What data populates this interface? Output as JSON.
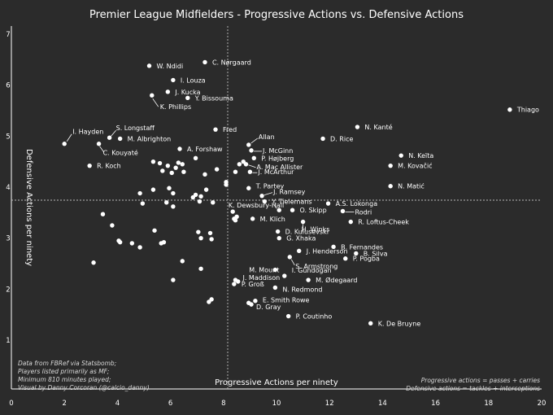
{
  "chart_data": {
    "type": "scatter",
    "title": "Premier League Midfielders - Progressive Actions vs. Defensive Actions",
    "xlabel": "Progressive Actions per ninety",
    "ylabel": "Defensive Actions per ninety",
    "xlim": [
      0,
      20
    ],
    "ylim": [
      0.5,
      7
    ],
    "xticks": [
      "0",
      "2",
      "4",
      "6",
      "8",
      "10",
      "12",
      "14",
      "16",
      "18",
      "20"
    ],
    "yticks": [
      "1",
      "2",
      "3",
      "4",
      "5",
      "6",
      "7"
    ],
    "reference_lines": {
      "x": 8,
      "y": 3.75
    },
    "grid": false,
    "source_note": [
      "Data from FBRef via Statsbomb;",
      "Players listed primarily as MF;",
      "Minimum 810 minutes played;",
      "Visual by Danny Corcoran (@calcio_danny)"
    ],
    "definitions_note": [
      "Progressive actions = passes + carries",
      "Defensive actions = tackles + interceptions"
    ],
    "labeled_points": [
      {
        "name": "C. Nørgaard",
        "x": 7.3,
        "y": 6.45
      },
      {
        "name": "W. Ndidi",
        "x": 5.2,
        "y": 6.38
      },
      {
        "name": "I. Louza",
        "x": 6.1,
        "y": 6.1
      },
      {
        "name": "J. Kucka",
        "x": 5.9,
        "y": 5.87
      },
      {
        "name": "Y. Bissouma",
        "x": 6.65,
        "y": 5.75
      },
      {
        "name": "K. Phillips",
        "x": 5.3,
        "y": 5.8
      },
      {
        "name": "Thiago",
        "x": 18.8,
        "y": 5.52
      },
      {
        "name": "Fred",
        "x": 7.7,
        "y": 5.13
      },
      {
        "name": "N. Kanté",
        "x": 13.05,
        "y": 5.18
      },
      {
        "name": "S. Longstaff",
        "x": 3.7,
        "y": 4.97
      },
      {
        "name": "I. Hayden",
        "x": 2.0,
        "y": 4.85
      },
      {
        "name": "M. Albrighton",
        "x": 4.1,
        "y": 4.95
      },
      {
        "name": "C. Kouyaté",
        "x": 3.3,
        "y": 4.85
      },
      {
        "name": "D. Rice",
        "x": 11.75,
        "y": 4.95
      },
      {
        "name": "Allan",
        "x": 8.95,
        "y": 4.83
      },
      {
        "name": "J. McGinn",
        "x": 9.05,
        "y": 4.72
      },
      {
        "name": "A. Forshaw",
        "x": 6.35,
        "y": 4.75
      },
      {
        "name": "P. Højberg",
        "x": 9.15,
        "y": 4.57
      },
      {
        "name": "N. Keïta",
        "x": 14.7,
        "y": 4.62
      },
      {
        "name": "A. Mac Allister",
        "x": 8.85,
        "y": 4.45
      },
      {
        "name": "M. Kovačić",
        "x": 14.3,
        "y": 4.42
      },
      {
        "name": "R. Koch",
        "x": 2.95,
        "y": 4.42
      },
      {
        "name": "J. McArthur",
        "x": 9.0,
        "y": 4.3
      },
      {
        "name": "N. Matić",
        "x": 14.3,
        "y": 4.02
      },
      {
        "name": "T. Partey",
        "x": 8.95,
        "y": 3.98
      },
      {
        "name": "J. Ramsey",
        "x": 9.45,
        "y": 3.83
      },
      {
        "name": "Y. Tielemans",
        "x": 9.55,
        "y": 3.72
      },
      {
        "name": "A.S. Lokonga",
        "x": 11.95,
        "y": 3.68
      },
      {
        "name": "K. Dewsbury-Hall",
        "x": 10.1,
        "y": 3.55
      },
      {
        "name": "O. Skipp",
        "x": 10.6,
        "y": 3.55
      },
      {
        "name": "Rodri",
        "x": 12.5,
        "y": 3.53
      },
      {
        "name": "M. Klich",
        "x": 9.1,
        "y": 3.38
      },
      {
        "name": "H. Winks",
        "x": 11.0,
        "y": 3.32
      },
      {
        "name": "R. Loftus-Cheek",
        "x": 12.8,
        "y": 3.32
      },
      {
        "name": "D. Kulusevski",
        "x": 10.05,
        "y": 3.13
      },
      {
        "name": "G. Xhaka",
        "x": 10.1,
        "y": 3.0
      },
      {
        "name": "B. Fernandes",
        "x": 12.15,
        "y": 2.83
      },
      {
        "name": "J. Henderson",
        "x": 10.85,
        "y": 2.75
      },
      {
        "name": "B. Silva",
        "x": 13.0,
        "y": 2.7
      },
      {
        "name": "P. Pogba",
        "x": 12.6,
        "y": 2.6
      },
      {
        "name": "S. Armstrong",
        "x": 10.5,
        "y": 2.63
      },
      {
        "name": "M. Mount",
        "x": 9.95,
        "y": 2.38
      },
      {
        "name": "I. Gündogan",
        "x": 10.3,
        "y": 2.26
      },
      {
        "name": "M. Ødegaard",
        "x": 11.2,
        "y": 2.18
      },
      {
        "name": "J. Maddison",
        "x": 8.45,
        "y": 2.18
      },
      {
        "name": "P. Groß",
        "x": 8.4,
        "y": 2.1
      },
      {
        "name": "N. Redmond",
        "x": 9.95,
        "y": 2.03
      },
      {
        "name": "E. Smith Rowe",
        "x": 9.2,
        "y": 1.77
      },
      {
        "name": "D. Gray",
        "x": 9.05,
        "y": 1.7
      },
      {
        "name": "P. Coutinho",
        "x": 10.45,
        "y": 1.47
      },
      {
        "name": "K. De Bruyne",
        "x": 13.55,
        "y": 1.33
      }
    ],
    "unlabeled_points": [
      {
        "x": 3.45,
        "y": 3.47
      },
      {
        "x": 3.8,
        "y": 3.25
      },
      {
        "x": 3.1,
        "y": 2.52
      },
      {
        "x": 4.1,
        "y": 2.92
      },
      {
        "x": 4.05,
        "y": 2.95
      },
      {
        "x": 4.55,
        "y": 2.9
      },
      {
        "x": 4.85,
        "y": 2.82
      },
      {
        "x": 4.95,
        "y": 3.68
      },
      {
        "x": 4.85,
        "y": 3.88
      },
      {
        "x": 5.35,
        "y": 3.95
      },
      {
        "x": 5.4,
        "y": 3.15
      },
      {
        "x": 5.65,
        "y": 2.9
      },
      {
        "x": 5.75,
        "y": 2.92
      },
      {
        "x": 5.85,
        "y": 3.7
      },
      {
        "x": 5.95,
        "y": 3.98
      },
      {
        "x": 6.1,
        "y": 3.62
      },
      {
        "x": 6.1,
        "y": 3.88
      },
      {
        "x": 5.7,
        "y": 4.32
      },
      {
        "x": 5.9,
        "y": 4.42
      },
      {
        "x": 6.05,
        "y": 4.28
      },
      {
        "x": 6.2,
        "y": 4.38
      },
      {
        "x": 6.5,
        "y": 4.3
      },
      {
        "x": 5.35,
        "y": 4.5
      },
      {
        "x": 5.6,
        "y": 4.47
      },
      {
        "x": 6.3,
        "y": 4.48
      },
      {
        "x": 6.45,
        "y": 4.45
      },
      {
        "x": 6.95,
        "y": 4.57
      },
      {
        "x": 7.1,
        "y": 3.72
      },
      {
        "x": 6.85,
        "y": 3.8
      },
      {
        "x": 6.95,
        "y": 3.85
      },
      {
        "x": 7.15,
        "y": 3.82
      },
      {
        "x": 7.35,
        "y": 3.95
      },
      {
        "x": 7.6,
        "y": 3.7
      },
      {
        "x": 7.5,
        "y": 3.1
      },
      {
        "x": 7.55,
        "y": 2.98
      },
      {
        "x": 7.05,
        "y": 3.12
      },
      {
        "x": 7.15,
        "y": 3.0
      },
      {
        "x": 6.45,
        "y": 2.55
      },
      {
        "x": 6.1,
        "y": 2.18
      },
      {
        "x": 7.15,
        "y": 2.4
      },
      {
        "x": 7.75,
        "y": 4.35
      },
      {
        "x": 8.1,
        "y": 4.05
      },
      {
        "x": 8.1,
        "y": 4.1
      },
      {
        "x": 8.45,
        "y": 4.3
      },
      {
        "x": 8.6,
        "y": 4.45
      },
      {
        "x": 8.75,
        "y": 4.5
      },
      {
        "x": 8.35,
        "y": 3.52
      },
      {
        "x": 8.5,
        "y": 3.42
      },
      {
        "x": 8.45,
        "y": 3.35
      },
      {
        "x": 8.4,
        "y": 3.38
      },
      {
        "x": 7.55,
        "y": 1.8
      },
      {
        "x": 7.45,
        "y": 1.75
      },
      {
        "x": 8.55,
        "y": 2.15
      },
      {
        "x": 8.95,
        "y": 1.73
      },
      {
        "x": 7.3,
        "y": 4.25
      }
    ]
  }
}
